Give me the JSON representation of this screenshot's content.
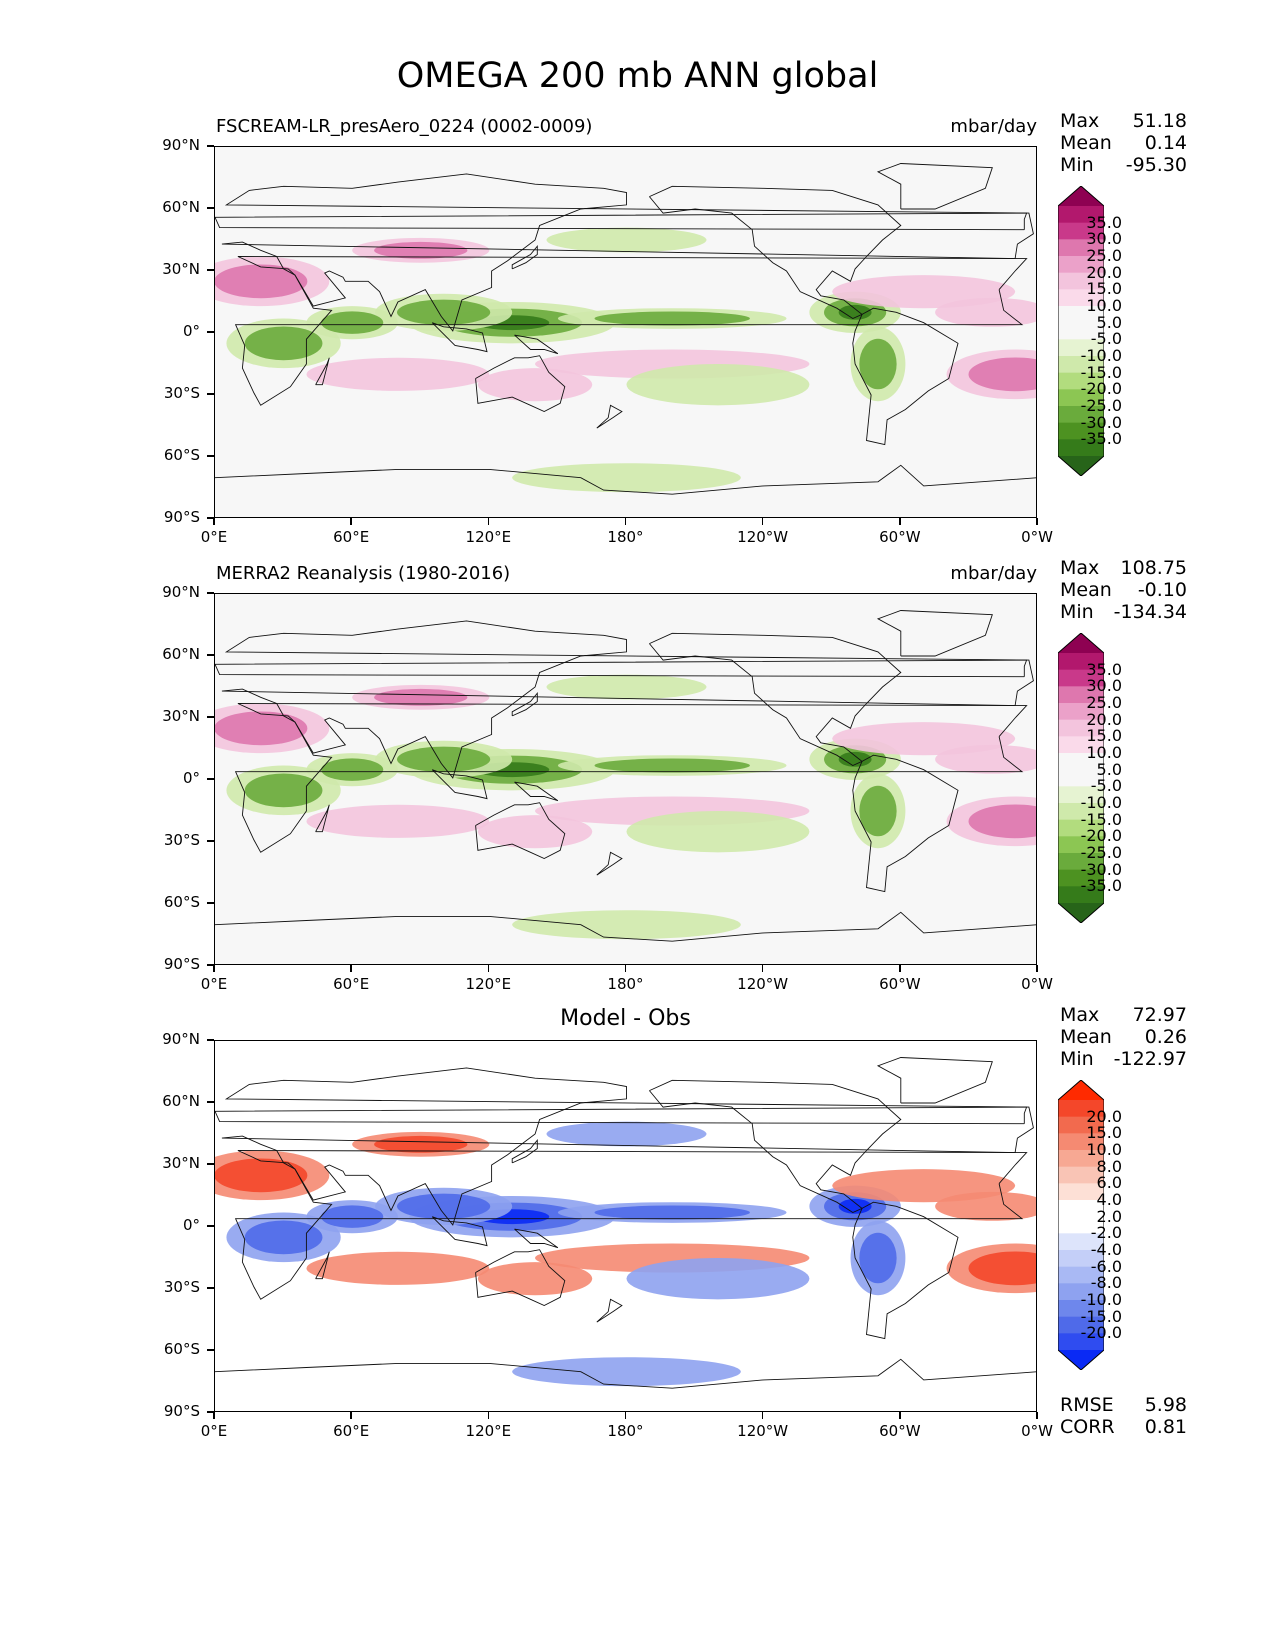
{
  "figure": {
    "title": "OMEGA 200 mb ANN global"
  },
  "axes": {
    "y_ticks": [
      "90°N",
      "60°N",
      "30°N",
      "0°",
      "30°S",
      "60°S",
      "90°S"
    ],
    "x_ticks": [
      "0°E",
      "60°E",
      "120°E",
      "180°",
      "120°W",
      "60°W",
      "0°W"
    ]
  },
  "panels": [
    {
      "title_left": "FSCREAM-LR_presAero_0224 (0002-0009)",
      "title_right": "mbar/day",
      "title_center": "",
      "stats": [
        {
          "label": "Max",
          "value": "51.18"
        },
        {
          "label": "Mean",
          "value": "0.14"
        },
        {
          "label": "Min",
          "value": "-95.30"
        }
      ],
      "extra_stats": [],
      "colorbar": {
        "labels": [
          "35.0",
          "30.0",
          "25.0",
          "20.0",
          "15.0",
          "10.0",
          "5.0",
          "-5.0",
          "-10.0",
          "-15.0",
          "-20.0",
          "-25.0",
          "-30.0",
          "-35.0"
        ],
        "colors": [
          "#8e0152",
          "#b2186d",
          "#c9398a",
          "#de77ae",
          "#eba1c9",
          "#f3c4dd",
          "#fadaea",
          "#f7f7f7",
          "#f7f7f7",
          "#e6f3d2",
          "#cfe9ab",
          "#b2dc7e",
          "#8cc653",
          "#6aab3c",
          "#4d9221",
          "#357b1a",
          "#276419"
        ]
      }
    },
    {
      "title_left": "MERRA2 Reanalysis (1980-2016)",
      "title_right": "mbar/day",
      "title_center": "",
      "stats": [
        {
          "label": "Max",
          "value": "108.75"
        },
        {
          "label": "Mean",
          "value": "-0.10"
        },
        {
          "label": "Min",
          "value": "-134.34"
        }
      ],
      "extra_stats": [],
      "colorbar": {
        "labels": [
          "35.0",
          "30.0",
          "25.0",
          "20.0",
          "15.0",
          "10.0",
          "5.0",
          "-5.0",
          "-10.0",
          "-15.0",
          "-20.0",
          "-25.0",
          "-30.0",
          "-35.0"
        ],
        "colors": [
          "#8e0152",
          "#b2186d",
          "#c9398a",
          "#de77ae",
          "#eba1c9",
          "#f3c4dd",
          "#fadaea",
          "#f7f7f7",
          "#f7f7f7",
          "#e6f3d2",
          "#cfe9ab",
          "#b2dc7e",
          "#8cc653",
          "#6aab3c",
          "#4d9221",
          "#357b1a",
          "#276419"
        ]
      }
    },
    {
      "title_left": "",
      "title_right": "",
      "title_center": "Model - Obs",
      "stats": [
        {
          "label": "Max",
          "value": "72.97"
        },
        {
          "label": "Mean",
          "value": "0.26"
        },
        {
          "label": "Min",
          "value": "-122.97"
        }
      ],
      "extra_stats": [
        {
          "label": "RMSE",
          "value": "5.98"
        },
        {
          "label": "CORR",
          "value": "0.81"
        }
      ],
      "colorbar": {
        "labels": [
          "20.0",
          "15.0",
          "10.0",
          "8.0",
          "6.0",
          "4.0",
          "2.0",
          "-2.0",
          "-4.0",
          "-6.0",
          "-8.0",
          "-10.0",
          "-15.0",
          "-20.0"
        ],
        "colors": [
          "#ff2a00",
          "#f4472a",
          "#f26a4e",
          "#f58a72",
          "#f7a893",
          "#f9c4b5",
          "#fde0d6",
          "#ffffff",
          "#ffffff",
          "#dde4fb",
          "#c4cff8",
          "#a9b9f4",
          "#8ea2f0",
          "#6e87ec",
          "#4f6ae9",
          "#2f4cf0",
          "#0a2af5"
        ]
      }
    }
  ]
}
